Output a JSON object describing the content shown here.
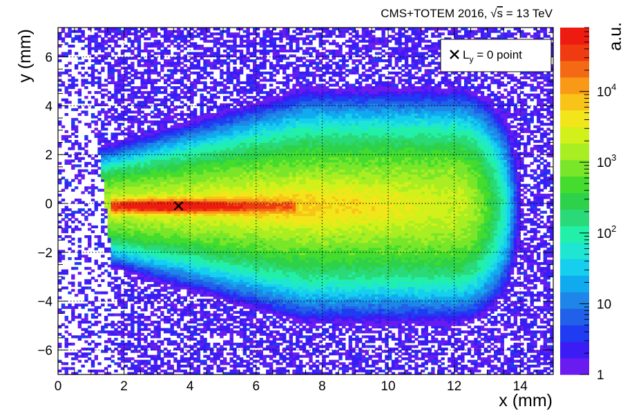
{
  "chart_data": {
    "type": "heatmap",
    "header": "CMS+TOTEM 2016, √s = 13 TeV",
    "header_parts": {
      "prefix": "CMS+TOTEM 2016, ",
      "sqrt": "√",
      "s": "s",
      "suffix": " = 13 TeV"
    },
    "xlabel": "x (mm)",
    "ylabel": "y (mm)",
    "zlabel": "a.u.",
    "xlim": [
      0,
      15
    ],
    "ylim": [
      -7,
      7.2
    ],
    "x_ticks": [
      0,
      2,
      4,
      6,
      8,
      10,
      12,
      14
    ],
    "x_tick_labels": [
      "0",
      "2",
      "4",
      "6",
      "8",
      "10",
      "12",
      "14"
    ],
    "y_ticks": [
      -6,
      -4,
      -2,
      0,
      2,
      4,
      6
    ],
    "y_tick_labels": [
      "−6",
      "−4",
      "−2",
      "0",
      "2",
      "4",
      "6"
    ],
    "z_scale": "log",
    "zlim": [
      1,
      80000
    ],
    "z_ticks": [
      1,
      10,
      100,
      1000,
      10000
    ],
    "z_tick_labels": [
      {
        "base": "1",
        "exp": ""
      },
      {
        "base": "10",
        "exp": ""
      },
      {
        "base": "10",
        "exp": "2"
      },
      {
        "base": "10",
        "exp": "3"
      },
      {
        "base": "10",
        "exp": "4"
      }
    ],
    "grid": true,
    "palette": [
      "#6a1cf0",
      "#3b1cf5",
      "#1f3cf2",
      "#2160e8",
      "#1e86e8",
      "#10aaee",
      "#16cfee",
      "#1ee6d2",
      "#22f0a8",
      "#2ad978",
      "#2ed24a",
      "#44dd2e",
      "#7ae62a",
      "#a8ee22",
      "#d2f01a",
      "#f2e61a",
      "#f8c418",
      "#f89a16",
      "#f46a14",
      "#f03a12",
      "#ee1c10"
    ],
    "distribution": {
      "bin_width": 0.1,
      "core": {
        "x": [
          1.5,
          7.2
        ],
        "y_center": -0.1,
        "peak_x": 3.2
      },
      "max_value": 80000,
      "coverage": "x from edge ≈ 0.8–2.0 (lower-left) up to ≈ 14.3; y from -7 to 7.2"
    },
    "marker": {
      "x": 3.65,
      "y": -0.1,
      "label_main": "L",
      "label_sub": "y",
      "label_rest": " = 0 point",
      "symbol": "×"
    },
    "legend_position": "top-right"
  }
}
